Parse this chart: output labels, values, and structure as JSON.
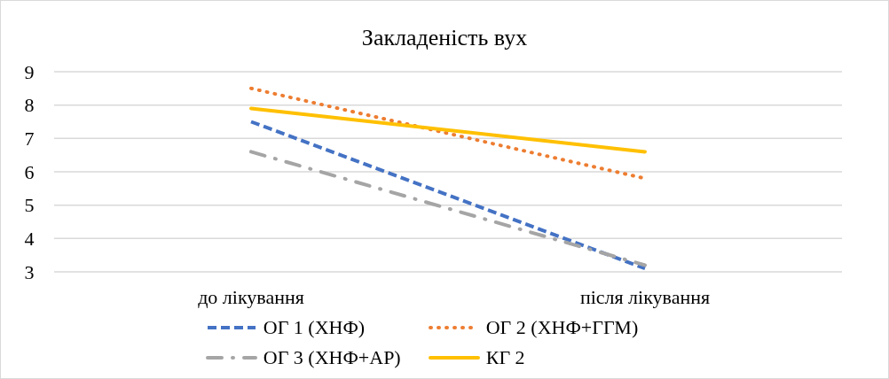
{
  "chart_data": {
    "type": "line",
    "title": "Закладеність вух",
    "categories": [
      "до лікування",
      "після лікування"
    ],
    "series": [
      {
        "name": "ОГ 1 (ХНФ)",
        "color": "#4472c4",
        "line_style": "dashed",
        "values": [
          7.5,
          3.1
        ]
      },
      {
        "name": "ОГ 2 (ХНФ+ГГМ)",
        "color": "#ed7d31",
        "line_style": "dotted",
        "values": [
          8.5,
          5.8
        ]
      },
      {
        "name": "ОГ 3 (ХНФ+АР)",
        "color": "#a5a5a5",
        "line_style": "dashdot",
        "values": [
          6.6,
          3.2
        ]
      },
      {
        "name": "КГ 2",
        "color": "#ffc000",
        "line_style": "solid",
        "values": [
          7.9,
          6.6
        ]
      }
    ],
    "ylim": [
      3,
      9
    ],
    "yticks": [
      3,
      4,
      5,
      6,
      7,
      8,
      9
    ],
    "grid": "y",
    "legend": "bottom",
    "marker": "none"
  }
}
